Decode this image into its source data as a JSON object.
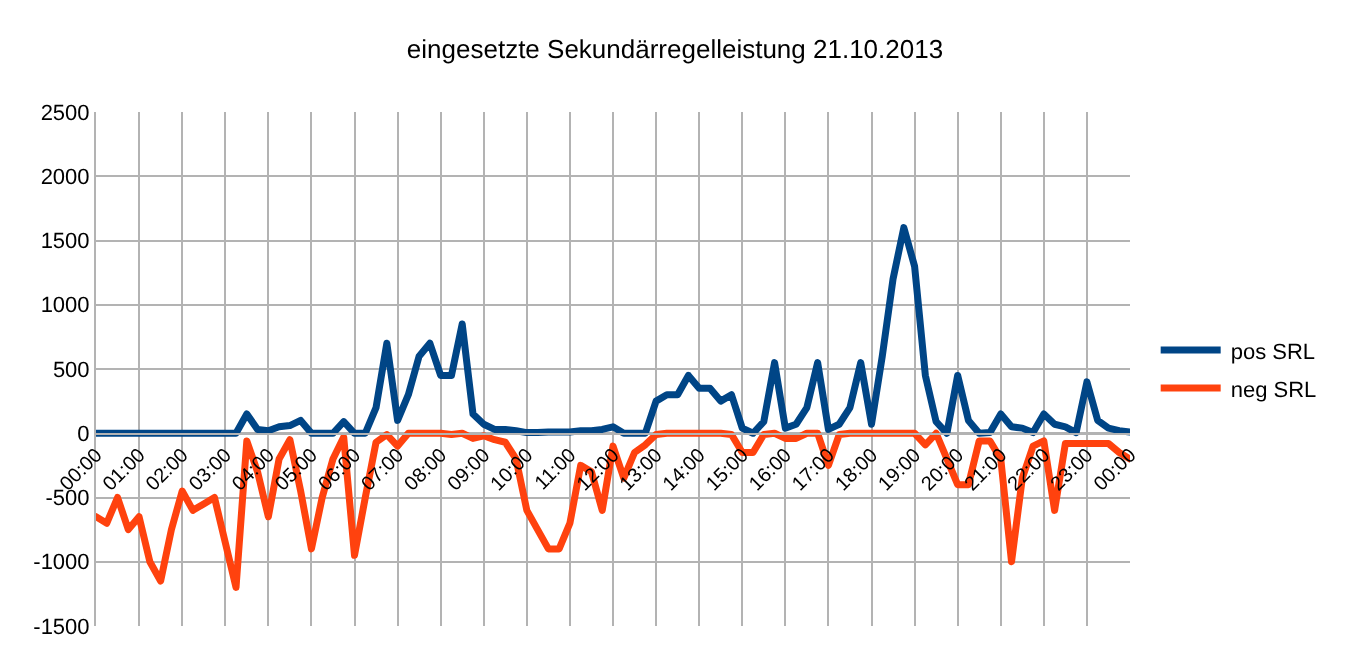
{
  "chart_data": {
    "type": "line",
    "title": "eingesetzte Sekundärregelleistung 21.10.2013",
    "categories": [
      "00:00",
      null,
      null,
      null,
      "01:00",
      null,
      null,
      null,
      "02:00",
      null,
      null,
      null,
      "03:00",
      null,
      null,
      null,
      "04:00",
      null,
      null,
      null,
      "05:00",
      null,
      null,
      null,
      "06:00",
      null,
      null,
      null,
      "07:00",
      null,
      null,
      null,
      "08:00",
      null,
      null,
      null,
      "09:00",
      null,
      null,
      null,
      "10:00",
      null,
      null,
      null,
      "11:00",
      null,
      null,
      null,
      "12:00",
      null,
      null,
      null,
      "13:00",
      null,
      null,
      null,
      "14:00",
      null,
      null,
      null,
      "15:00",
      null,
      null,
      null,
      "16:00",
      null,
      null,
      null,
      "17:00",
      null,
      null,
      null,
      "18:00",
      null,
      null,
      null,
      "19:00",
      null,
      null,
      null,
      "20:00",
      null,
      null,
      null,
      "21:00",
      null,
      null,
      null,
      "22:00",
      null,
      null,
      null,
      "23:00",
      null,
      null,
      null,
      "00:00"
    ],
    "series": [
      {
        "name": "pos SRL",
        "color": "#004586",
        "values": [
          0,
          0,
          0,
          0,
          0,
          0,
          0,
          0,
          0,
          0,
          0,
          0,
          0,
          0,
          150,
          30,
          20,
          50,
          60,
          100,
          0,
          0,
          0,
          90,
          0,
          0,
          200,
          700,
          100,
          300,
          600,
          700,
          450,
          450,
          850,
          150,
          70,
          30,
          30,
          20,
          5,
          5,
          10,
          10,
          10,
          20,
          20,
          30,
          50,
          0,
          0,
          0,
          250,
          300,
          300,
          450,
          350,
          350,
          250,
          300,
          40,
          0,
          90,
          550,
          40,
          70,
          200,
          550,
          30,
          70,
          200,
          550,
          70,
          600,
          1200,
          1600,
          1300,
          450,
          90,
          0,
          450,
          100,
          0,
          5,
          150,
          50,
          40,
          5,
          150,
          70,
          50,
          5,
          400,
          100,
          40,
          20,
          10
        ]
      },
      {
        "name": "neg SRL",
        "color": "#ff420e",
        "values": [
          -650,
          -700,
          -500,
          -750,
          -650,
          -1000,
          -1150,
          -750,
          -450,
          -600,
          -550,
          -500,
          -850,
          -1200,
          -60,
          -300,
          -650,
          -200,
          -50,
          -450,
          -900,
          -500,
          -200,
          -30,
          -950,
          -500,
          -70,
          -10,
          -100,
          0,
          0,
          0,
          0,
          -10,
          0,
          -40,
          -20,
          -50,
          -70,
          -200,
          -600,
          -750,
          -900,
          -900,
          -700,
          -250,
          -300,
          -600,
          -100,
          -350,
          -150,
          -90,
          -10,
          0,
          0,
          0,
          0,
          0,
          0,
          -10,
          -150,
          -150,
          -10,
          0,
          -40,
          -40,
          0,
          0,
          -250,
          -10,
          0,
          0,
          0,
          0,
          0,
          0,
          0,
          -90,
          0,
          -200,
          -400,
          -400,
          -60,
          -60,
          -200,
          -1000,
          -350,
          -100,
          -60,
          -600,
          -80,
          -80,
          -80,
          -80,
          -80,
          -150,
          -200
        ]
      }
    ],
    "ylim": [
      -1500,
      2500
    ],
    "yticks": [
      -1500,
      -1000,
      -500,
      0,
      500,
      1000,
      1500,
      2000,
      2500
    ],
    "grid": true,
    "legend": "right",
    "marker": "none",
    "line_style": "solid"
  }
}
